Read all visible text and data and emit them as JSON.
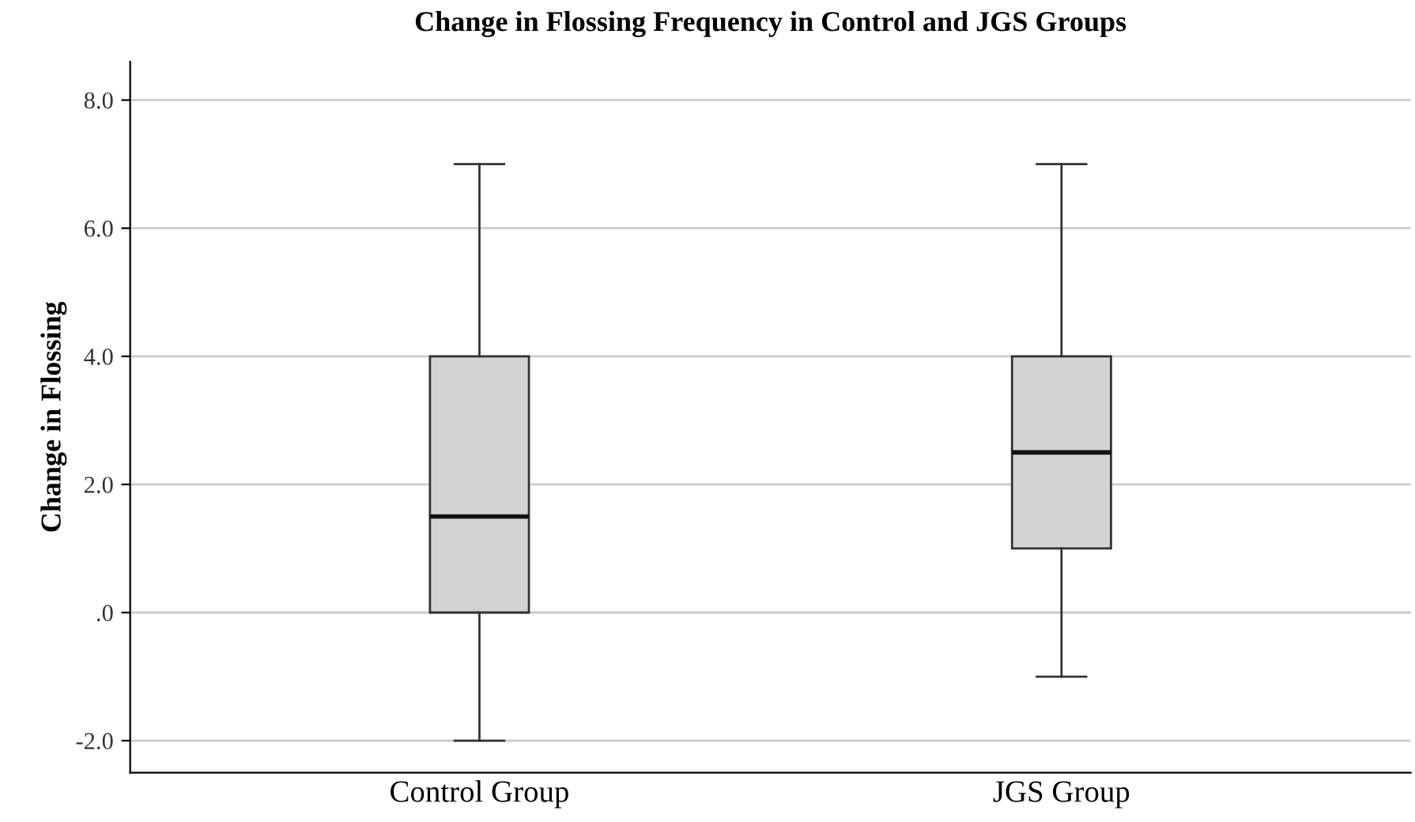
{
  "chart_data": {
    "type": "box",
    "title": "Change in Flossing Frequency in Control and JGS Groups",
    "ylabel": "Change in Flossing",
    "categories": [
      "Control Group",
      "JGS Group"
    ],
    "boxes": [
      {
        "low": -2,
        "q1": 0,
        "median": 1.5,
        "q3": 4,
        "high": 7
      },
      {
        "low": -1,
        "q1": 1,
        "median": 2.5,
        "q3": 4,
        "high": 7
      }
    ],
    "color": "#d3d3d3",
    "ylim": [
      -2.5,
      8.6
    ],
    "yticks": [
      {
        "value": -2,
        "label": "-2.0"
      },
      {
        "value": 0,
        "label": ".0"
      },
      {
        "value": 2,
        "label": "2.0"
      },
      {
        "value": 4,
        "label": "4.0"
      },
      {
        "value": 6,
        "label": "6.0"
      },
      {
        "value": 8,
        "label": "8.0"
      }
    ],
    "grid": "y"
  }
}
